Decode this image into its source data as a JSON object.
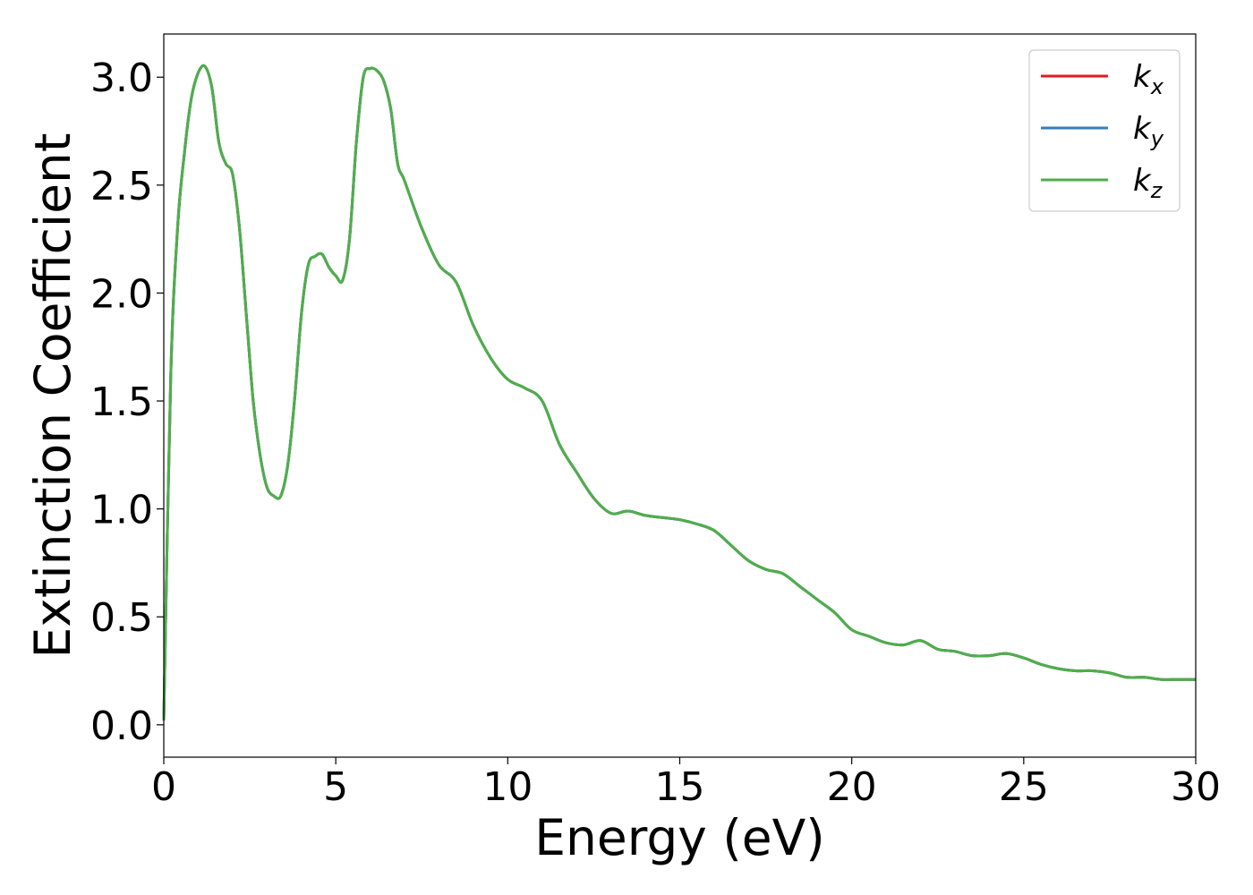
{
  "chart_data": {
    "type": "line",
    "xlabel": "Energy (eV)",
    "ylabel": "Extinction Coefficient",
    "xlim": [
      0,
      30
    ],
    "ylim": [
      -0.15,
      3.2
    ],
    "xticks": [
      0,
      5,
      10,
      15,
      20,
      25,
      30
    ],
    "xtick_labels": [
      "0",
      "5",
      "10",
      "15",
      "20",
      "25",
      "30"
    ],
    "yticks": [
      0.0,
      0.5,
      1.0,
      1.5,
      2.0,
      2.5,
      3.0
    ],
    "ytick_labels": [
      "0.0",
      "0.5",
      "1.0",
      "1.5",
      "2.0",
      "2.5",
      "3.0"
    ],
    "grid": false,
    "legend_position": "top-right",
    "x": [
      0,
      0.2,
      0.4,
      0.6,
      0.8,
      1.0,
      1.2,
      1.4,
      1.6,
      1.8,
      2.0,
      2.2,
      2.4,
      2.6,
      2.8,
      3.0,
      3.2,
      3.4,
      3.6,
      3.8,
      4.0,
      4.2,
      4.4,
      4.6,
      4.8,
      5.0,
      5.2,
      5.4,
      5.6,
      5.8,
      6.0,
      6.2,
      6.4,
      6.6,
      6.8,
      7.0,
      7.5,
      8.0,
      8.5,
      9.0,
      9.5,
      10.0,
      10.5,
      11.0,
      11.5,
      12.0,
      12.5,
      13.0,
      13.5,
      14.0,
      14.5,
      15.0,
      15.5,
      16.0,
      16.5,
      17.0,
      17.5,
      18.0,
      18.5,
      19.0,
      19.5,
      20.0,
      20.5,
      21.0,
      21.5,
      22.0,
      22.5,
      23.0,
      23.5,
      24.0,
      24.5,
      25.0,
      25.5,
      26.0,
      26.5,
      27.0,
      27.5,
      28.0,
      28.5,
      29.0,
      29.5,
      30.0
    ],
    "series": [
      {
        "name": "k_x",
        "label_main": "k",
        "label_sub": "x",
        "color": "#e41a1c",
        "values": [
          0.02,
          1.6,
          2.3,
          2.65,
          2.9,
          3.02,
          3.05,
          2.95,
          2.7,
          2.6,
          2.55,
          2.3,
          1.9,
          1.5,
          1.25,
          1.1,
          1.06,
          1.06,
          1.2,
          1.5,
          1.9,
          2.13,
          2.17,
          2.18,
          2.12,
          2.08,
          2.06,
          2.25,
          2.7,
          3.0,
          3.04,
          3.03,
          2.98,
          2.85,
          2.6,
          2.52,
          2.3,
          2.13,
          2.05,
          1.85,
          1.7,
          1.6,
          1.56,
          1.5,
          1.3,
          1.17,
          1.05,
          0.98,
          0.99,
          0.97,
          0.96,
          0.95,
          0.93,
          0.9,
          0.83,
          0.76,
          0.72,
          0.7,
          0.64,
          0.58,
          0.52,
          0.44,
          0.41,
          0.38,
          0.37,
          0.39,
          0.35,
          0.34,
          0.32,
          0.32,
          0.33,
          0.31,
          0.28,
          0.26,
          0.25,
          0.25,
          0.24,
          0.22,
          0.22,
          0.21,
          0.21,
          0.21
        ]
      },
      {
        "name": "k_y",
        "label_main": "k",
        "label_sub": "y",
        "color": "#377eb8",
        "values": [
          0.02,
          1.6,
          2.3,
          2.65,
          2.9,
          3.02,
          3.05,
          2.95,
          2.7,
          2.6,
          2.55,
          2.3,
          1.9,
          1.5,
          1.25,
          1.1,
          1.06,
          1.06,
          1.2,
          1.5,
          1.9,
          2.13,
          2.17,
          2.18,
          2.12,
          2.08,
          2.06,
          2.25,
          2.7,
          3.0,
          3.04,
          3.03,
          2.98,
          2.85,
          2.6,
          2.52,
          2.3,
          2.13,
          2.05,
          1.85,
          1.7,
          1.6,
          1.56,
          1.5,
          1.3,
          1.17,
          1.05,
          0.98,
          0.99,
          0.97,
          0.96,
          0.95,
          0.93,
          0.9,
          0.83,
          0.76,
          0.72,
          0.7,
          0.64,
          0.58,
          0.52,
          0.44,
          0.41,
          0.38,
          0.37,
          0.39,
          0.35,
          0.34,
          0.32,
          0.32,
          0.33,
          0.31,
          0.28,
          0.26,
          0.25,
          0.25,
          0.24,
          0.22,
          0.22,
          0.21,
          0.21,
          0.21
        ]
      },
      {
        "name": "k_z",
        "label_main": "k",
        "label_sub": "z",
        "color": "#4daf4a",
        "values": [
          0.02,
          1.6,
          2.3,
          2.65,
          2.9,
          3.02,
          3.05,
          2.95,
          2.7,
          2.6,
          2.55,
          2.3,
          1.9,
          1.5,
          1.25,
          1.1,
          1.06,
          1.06,
          1.2,
          1.5,
          1.9,
          2.13,
          2.17,
          2.18,
          2.12,
          2.08,
          2.06,
          2.25,
          2.7,
          3.0,
          3.04,
          3.03,
          2.98,
          2.85,
          2.6,
          2.52,
          2.3,
          2.13,
          2.05,
          1.85,
          1.7,
          1.6,
          1.56,
          1.5,
          1.3,
          1.17,
          1.05,
          0.98,
          0.99,
          0.97,
          0.96,
          0.95,
          0.93,
          0.9,
          0.83,
          0.76,
          0.72,
          0.7,
          0.64,
          0.58,
          0.52,
          0.44,
          0.41,
          0.38,
          0.37,
          0.39,
          0.35,
          0.34,
          0.32,
          0.32,
          0.33,
          0.31,
          0.28,
          0.26,
          0.25,
          0.25,
          0.24,
          0.22,
          0.22,
          0.21,
          0.21,
          0.21
        ]
      }
    ]
  }
}
